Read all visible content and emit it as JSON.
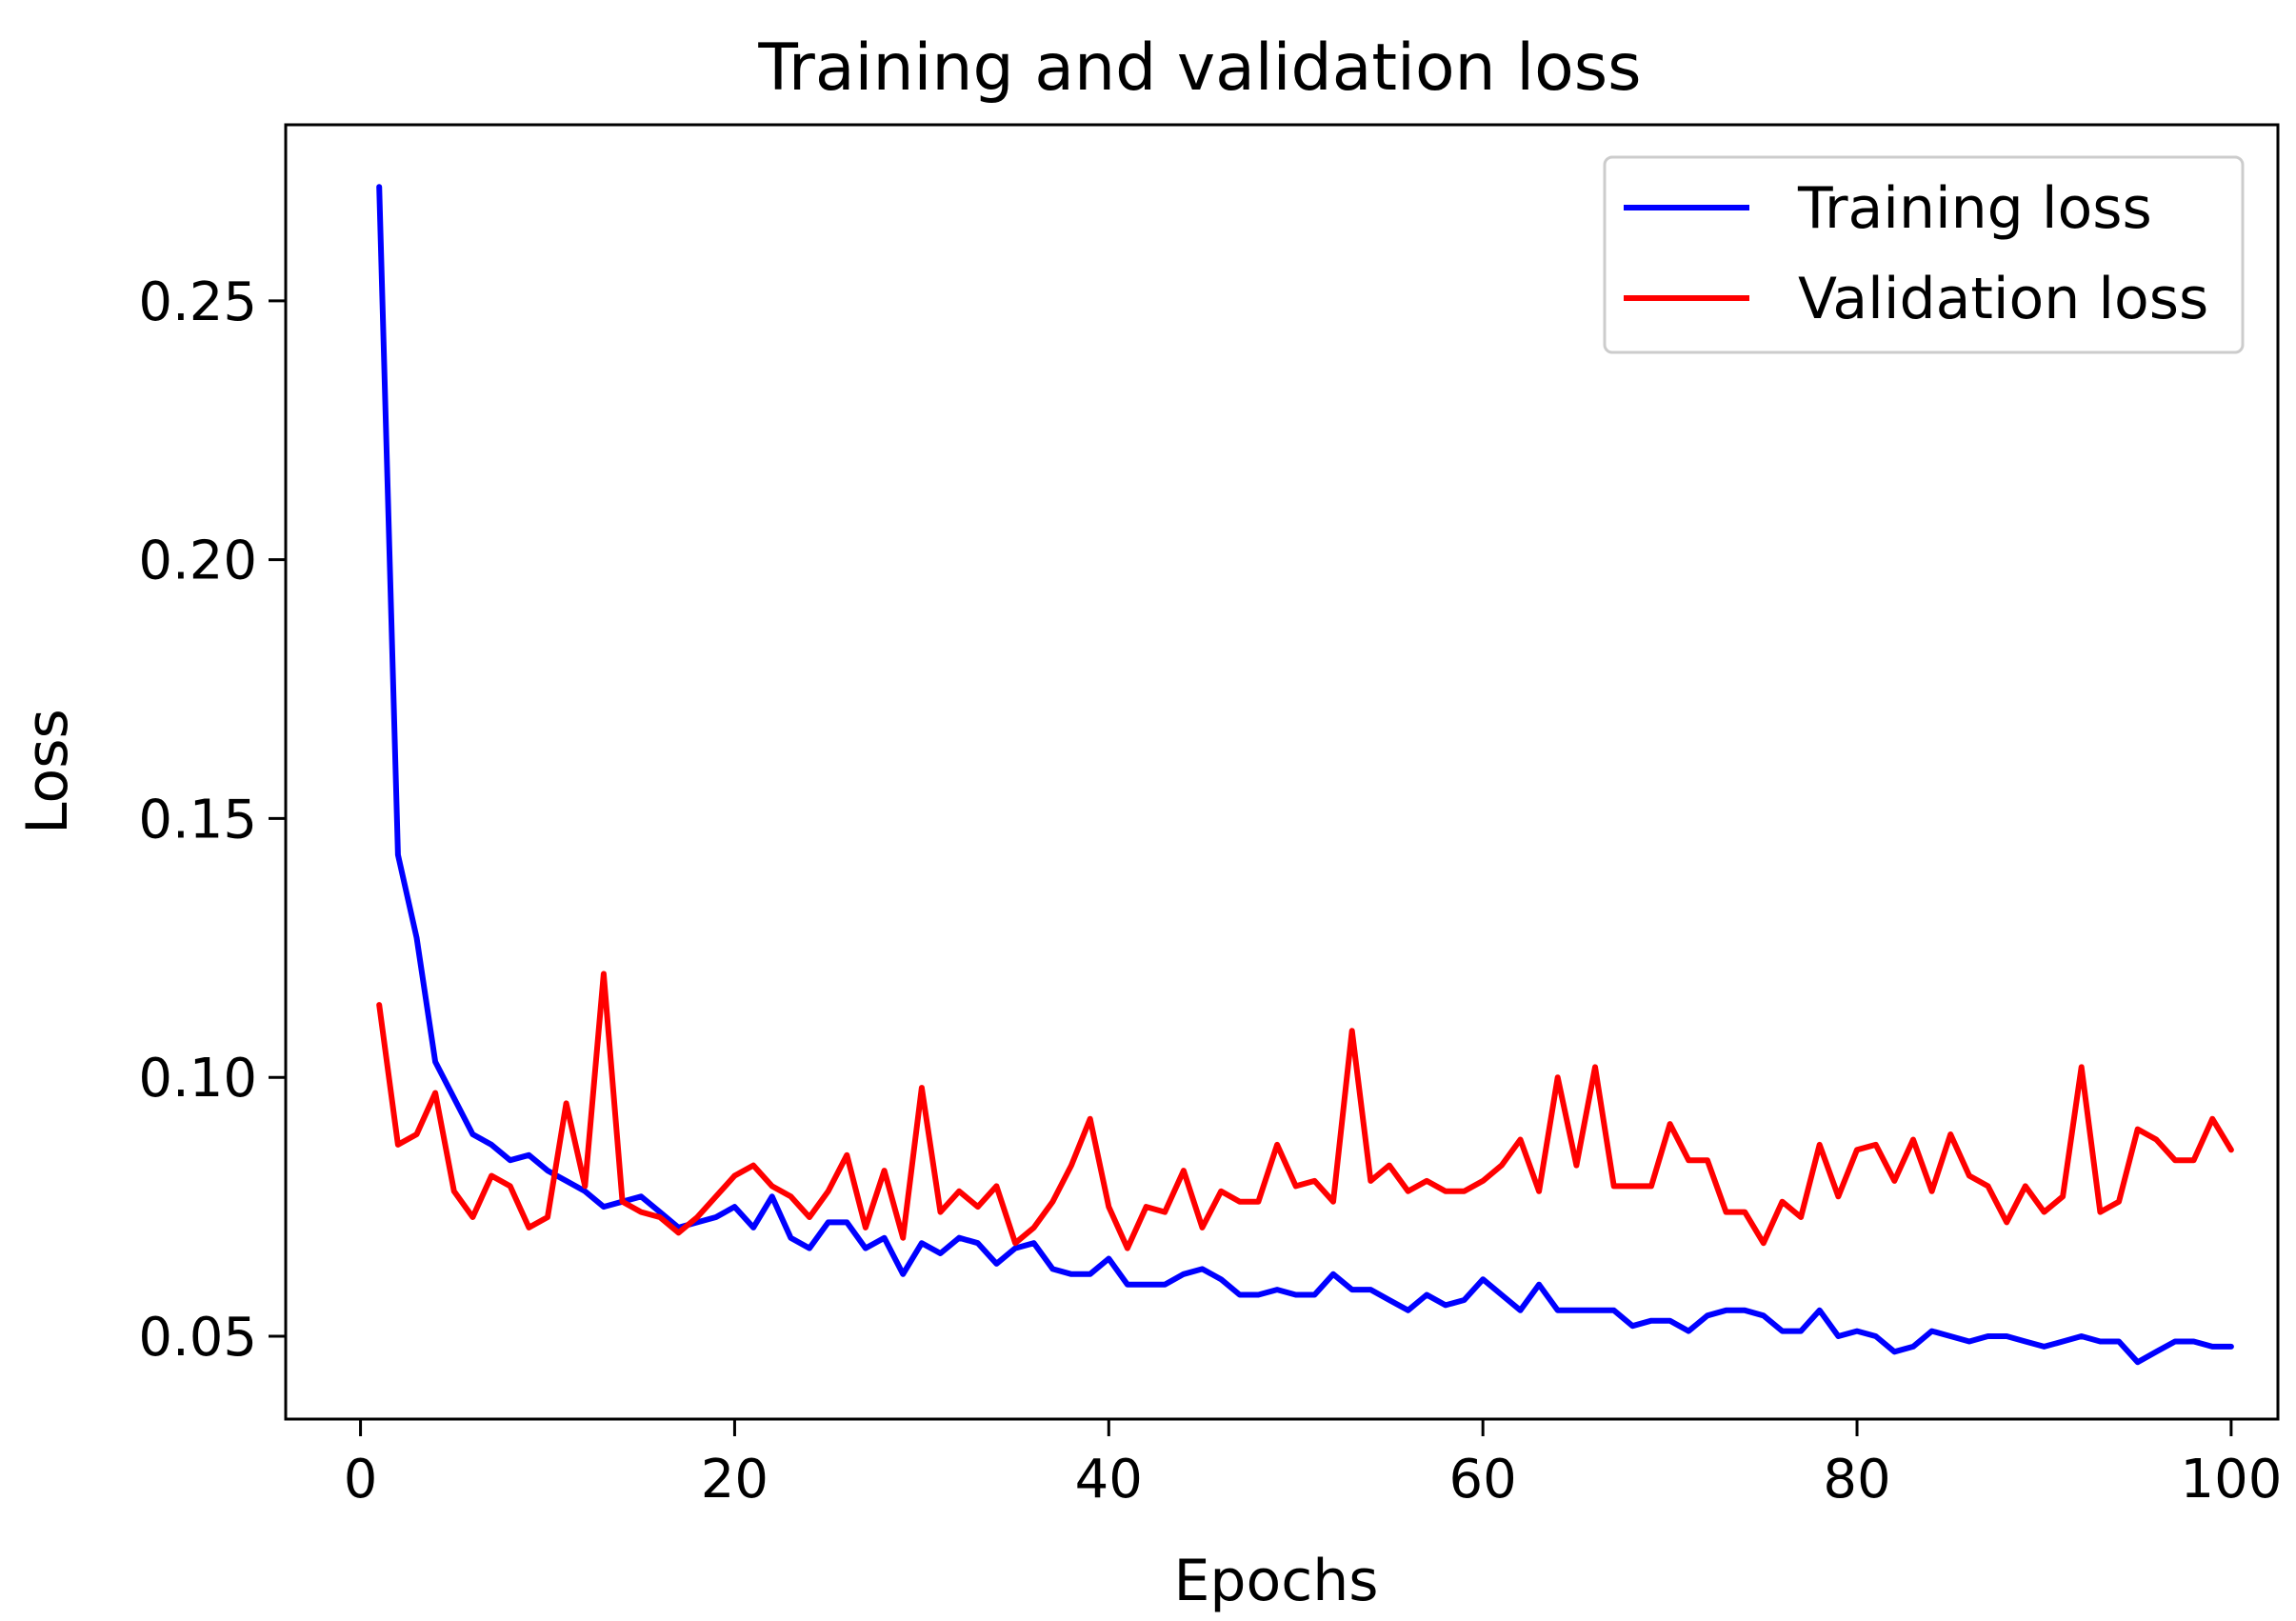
{
  "chart_data": {
    "type": "line",
    "title": "Training and validation loss",
    "xlabel": "Epochs",
    "ylabel": "Loss",
    "xlim": [
      -4,
      102.5
    ],
    "ylim": [
      0.034,
      0.284
    ],
    "xticks": [
      0,
      20,
      40,
      60,
      80,
      100
    ],
    "yticks": [
      0.05,
      0.1,
      0.15,
      0.2,
      0.25
    ],
    "xtick_labels": [
      "0",
      "20",
      "40",
      "60",
      "80",
      "100"
    ],
    "ytick_labels": [
      "0.05",
      "0.10",
      "0.15",
      "0.20",
      "0.25"
    ],
    "grid": false,
    "legend_position": "top-right",
    "x": [
      1,
      2,
      3,
      4,
      5,
      6,
      7,
      8,
      9,
      10,
      11,
      12,
      13,
      14,
      15,
      16,
      17,
      18,
      19,
      20,
      21,
      22,
      23,
      24,
      25,
      26,
      27,
      28,
      29,
      30,
      31,
      32,
      33,
      34,
      35,
      36,
      37,
      38,
      39,
      40,
      41,
      42,
      43,
      44,
      45,
      46,
      47,
      48,
      49,
      50,
      51,
      52,
      53,
      54,
      55,
      56,
      57,
      58,
      59,
      60,
      61,
      62,
      63,
      64,
      65,
      66,
      67,
      68,
      69,
      70,
      71,
      72,
      73,
      74,
      75,
      76,
      77,
      78,
      79,
      80,
      81,
      82,
      83,
      84,
      85,
      86,
      87,
      88,
      89,
      90,
      91,
      92,
      93,
      94,
      95,
      96,
      97,
      98,
      99,
      100
    ],
    "series": [
      {
        "name": "Training loss",
        "color": "#0000ff",
        "values": [
          0.272,
          0.143,
          0.127,
          0.103,
          0.096,
          0.089,
          0.087,
          0.084,
          0.085,
          0.082,
          0.08,
          0.078,
          0.075,
          0.076,
          0.077,
          0.074,
          0.071,
          0.072,
          0.073,
          0.075,
          0.071,
          0.077,
          0.069,
          0.067,
          0.072,
          0.072,
          0.067,
          0.069,
          0.062,
          0.068,
          0.066,
          0.069,
          0.068,
          0.064,
          0.067,
          0.068,
          0.063,
          0.062,
          0.062,
          0.065,
          0.06,
          0.06,
          0.06,
          0.062,
          0.063,
          0.061,
          0.058,
          0.058,
          0.059,
          0.058,
          0.058,
          0.062,
          0.059,
          0.059,
          0.057,
          0.055,
          0.058,
          0.056,
          0.057,
          0.061,
          0.058,
          0.055,
          0.06,
          0.055,
          0.055,
          0.055,
          0.055,
          0.052,
          0.053,
          0.053,
          0.051,
          0.054,
          0.055,
          0.055,
          0.054,
          0.051,
          0.051,
          0.055,
          0.05,
          0.051,
          0.05,
          0.047,
          0.048,
          0.051,
          0.05,
          0.049,
          0.05,
          0.05,
          0.049,
          0.048,
          0.049,
          0.05,
          0.049,
          0.049,
          0.045,
          0.047,
          0.049,
          0.049,
          0.048,
          0.048
        ]
      },
      {
        "name": "Validation loss",
        "color": "#ff0000",
        "values": [
          0.114,
          0.087,
          0.089,
          0.097,
          0.078,
          0.073,
          0.081,
          0.079,
          0.071,
          0.073,
          0.095,
          0.079,
          0.12,
          0.076,
          0.074,
          0.073,
          0.07,
          0.073,
          0.077,
          0.081,
          0.083,
          0.079,
          0.077,
          0.073,
          0.078,
          0.085,
          0.071,
          0.082,
          0.069,
          0.098,
          0.074,
          0.078,
          0.075,
          0.079,
          0.068,
          0.071,
          0.076,
          0.083,
          0.092,
          0.075,
          0.067,
          0.075,
          0.074,
          0.082,
          0.071,
          0.078,
          0.076,
          0.076,
          0.087,
          0.079,
          0.08,
          0.076,
          0.109,
          0.08,
          0.083,
          0.078,
          0.08,
          0.078,
          0.078,
          0.08,
          0.083,
          0.088,
          0.078,
          0.1,
          0.083,
          0.102,
          0.079,
          0.079,
          0.079,
          0.091,
          0.084,
          0.084,
          0.074,
          0.074,
          0.068,
          0.076,
          0.073,
          0.087,
          0.077,
          0.086,
          0.087,
          0.08,
          0.088,
          0.078,
          0.089,
          0.081,
          0.079,
          0.072,
          0.079,
          0.074,
          0.077,
          0.102,
          0.074,
          0.076,
          0.09,
          0.088,
          0.084,
          0.084,
          0.092,
          0.086
        ]
      }
    ]
  }
}
